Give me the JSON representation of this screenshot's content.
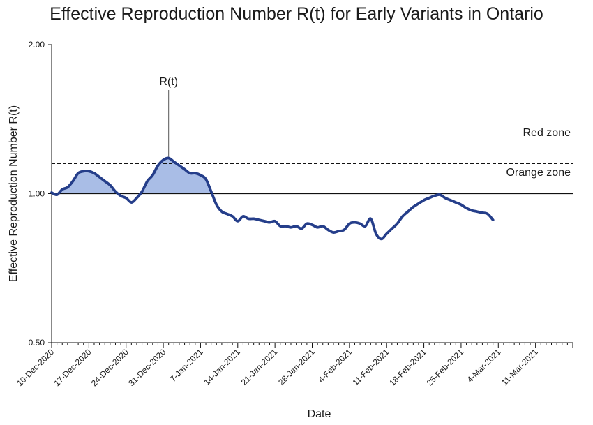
{
  "chart_data": {
    "type": "line",
    "title": "Effective Reproduction Number R(t) for Early Variants in Ontario",
    "xlabel": "Date",
    "ylabel": "Effective Reproduction Number R(t)",
    "y_scale": "log",
    "ylim": [
      0.5,
      2.0
    ],
    "yticks": [
      "0.50",
      "1.00",
      "2.00"
    ],
    "y_tick_values": [
      0.5,
      1.0,
      2.0
    ],
    "xlim": [
      "2020-12-10",
      "2021-03-18"
    ],
    "xticks": [
      "10-Dec-2020",
      "17-Dec-2020",
      "24-Dec-2020",
      "31-Dec-2020",
      "7-Jan-2021",
      "14-Jan-2021",
      "21-Jan-2021",
      "28-Jan-2021",
      "4-Feb-2021",
      "11-Feb-2021",
      "18-Feb-2021",
      "25-Feb-2021",
      "4-Mar-2021",
      "11-Mar-2021"
    ],
    "reference_lines": [
      {
        "y": 1.0,
        "style": "solid"
      },
      {
        "y": 1.15,
        "style": "dashed"
      }
    ],
    "zone_labels": [
      "Red zone",
      "Orange zone"
    ],
    "series_annotation": "R(t)",
    "grid": false,
    "legend": "none",
    "colors": {
      "line": "#253e8a",
      "fill": "#a9bde6"
    },
    "series": [
      {
        "x": [
          "2020-12-10",
          "2020-12-11",
          "2020-12-12",
          "2020-12-13",
          "2020-12-14",
          "2020-12-15",
          "2020-12-16",
          "2020-12-17",
          "2020-12-18",
          "2020-12-19",
          "2020-12-20",
          "2020-12-21",
          "2020-12-22",
          "2020-12-23",
          "2020-12-24",
          "2020-12-25",
          "2020-12-26",
          "2020-12-27",
          "2020-12-28",
          "2020-12-29",
          "2020-12-30",
          "2020-12-31",
          "2021-01-01",
          "2021-01-02",
          "2021-01-03",
          "2021-01-04",
          "2021-01-05",
          "2021-01-06",
          "2021-01-07",
          "2021-01-08",
          "2021-01-09",
          "2021-01-10",
          "2021-01-11",
          "2021-01-12",
          "2021-01-13",
          "2021-01-14",
          "2021-01-15",
          "2021-01-16",
          "2021-01-17",
          "2021-01-18",
          "2021-01-19",
          "2021-01-20",
          "2021-01-21",
          "2021-01-22",
          "2021-01-23",
          "2021-01-24",
          "2021-01-25",
          "2021-01-26",
          "2021-01-27",
          "2021-01-28",
          "2021-01-29",
          "2021-01-30",
          "2021-01-31",
          "2021-02-01",
          "2021-02-02",
          "2021-02-03",
          "2021-02-04",
          "2021-02-05",
          "2021-02-06",
          "2021-02-07",
          "2021-02-08",
          "2021-02-09",
          "2021-02-10",
          "2021-02-11",
          "2021-02-12",
          "2021-02-13",
          "2021-02-14",
          "2021-02-15",
          "2021-02-16",
          "2021-02-17",
          "2021-02-18",
          "2021-02-19",
          "2021-02-20",
          "2021-02-21",
          "2021-02-22",
          "2021-02-23",
          "2021-02-24",
          "2021-02-25",
          "2021-02-26",
          "2021-02-27",
          "2021-02-28",
          "2021-03-01",
          "2021-03-02",
          "2021-03-03"
        ],
        "y": [
          1.005,
          0.995,
          1.02,
          1.03,
          1.06,
          1.1,
          1.11,
          1.11,
          1.1,
          1.08,
          1.06,
          1.04,
          1.01,
          0.99,
          0.98,
          0.96,
          0.98,
          1.01,
          1.06,
          1.09,
          1.14,
          1.17,
          1.18,
          1.16,
          1.14,
          1.12,
          1.1,
          1.1,
          1.09,
          1.07,
          1.01,
          0.95,
          0.92,
          0.91,
          0.9,
          0.88,
          0.9,
          0.89,
          0.89,
          0.885,
          0.88,
          0.875,
          0.88,
          0.86,
          0.86,
          0.855,
          0.86,
          0.85,
          0.87,
          0.865,
          0.855,
          0.86,
          0.845,
          0.835,
          0.84,
          0.845,
          0.87,
          0.875,
          0.87,
          0.86,
          0.89,
          0.83,
          0.81,
          0.83,
          0.85,
          0.87,
          0.9,
          0.92,
          0.94,
          0.955,
          0.97,
          0.98,
          0.99,
          0.995,
          0.98,
          0.97,
          0.96,
          0.95,
          0.935,
          0.925,
          0.92,
          0.915,
          0.91,
          0.885
        ]
      }
    ]
  }
}
